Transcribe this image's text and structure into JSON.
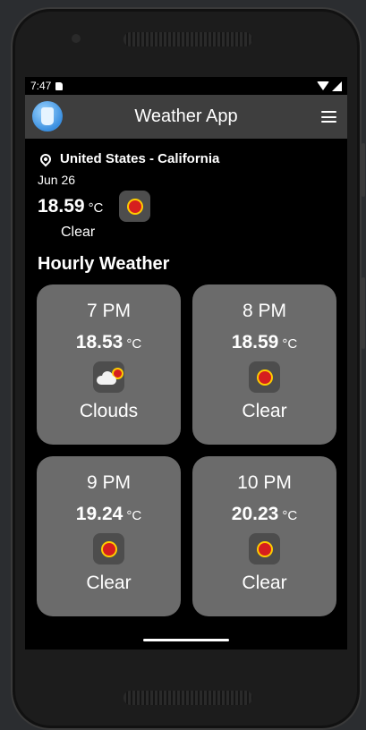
{
  "status_bar": {
    "time": "7:47"
  },
  "app_bar": {
    "title": "Weather App",
    "menu_icon": "hamburger-menu-icon",
    "logo_icon": "weather-app-logo-icon"
  },
  "current": {
    "location": "United States - California",
    "date": "Jun 26",
    "temperature": "18.59",
    "unit": "°C",
    "condition": "Clear",
    "icon": "sun-icon"
  },
  "hourly": {
    "title": "Hourly Weather",
    "items": [
      {
        "hour": "7 PM",
        "temperature": "18.53",
        "unit": "°C",
        "condition": "Clouds",
        "icon": "cloud-sun-icon"
      },
      {
        "hour": "8 PM",
        "temperature": "18.59",
        "unit": "°C",
        "condition": "Clear",
        "icon": "sun-icon"
      },
      {
        "hour": "9 PM",
        "temperature": "19.24",
        "unit": "°C",
        "condition": "Clear",
        "icon": "sun-icon"
      },
      {
        "hour": "10 PM",
        "temperature": "20.23",
        "unit": "°C",
        "condition": "Clear",
        "icon": "sun-icon"
      }
    ]
  },
  "colors": {
    "app_bar": "#3e3e3e",
    "card": "#6b6b6b",
    "icon_bg": "#4d4d4d",
    "screen_bg": "#000000"
  }
}
